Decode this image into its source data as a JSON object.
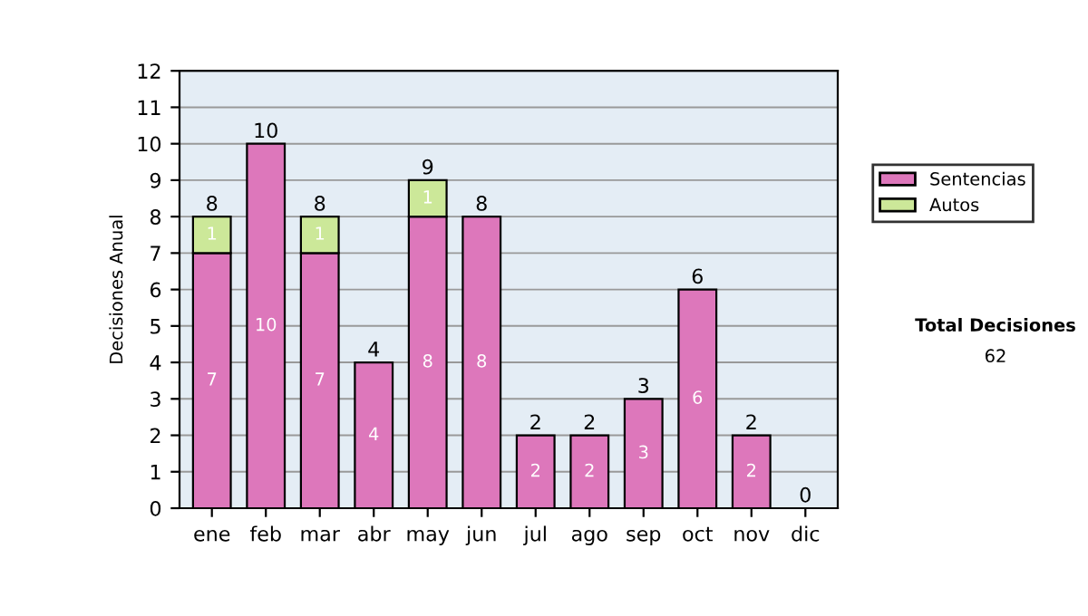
{
  "chart_data": {
    "type": "bar",
    "stacked": true,
    "ylabel": "Decisiones Anual",
    "categories": [
      "ene",
      "feb",
      "mar",
      "abr",
      "may",
      "jun",
      "jul",
      "ago",
      "sep",
      "oct",
      "nov",
      "dic"
    ],
    "series": [
      {
        "name": "Sentencias",
        "color": "#dd77bb",
        "values": [
          7,
          10,
          7,
          4,
          8,
          8,
          2,
          2,
          3,
          6,
          2,
          0
        ],
        "value_labels": [
          "7",
          "10",
          "7",
          "4",
          "8",
          "8",
          "2",
          "2",
          "3",
          "6",
          "2",
          null
        ]
      },
      {
        "name": "Autos",
        "color": "#cce899",
        "values": [
          1,
          0,
          1,
          0,
          1,
          0,
          0,
          0,
          0,
          0,
          0,
          0
        ],
        "value_labels": [
          "1",
          null,
          "1",
          null,
          "1",
          null,
          null,
          null,
          null,
          null,
          null,
          null
        ]
      }
    ],
    "totals": [
      "8",
      "10",
      "8",
      "4",
      "9",
      "8",
      "2",
      "2",
      "3",
      "6",
      "2",
      "0"
    ],
    "ylim": [
      0,
      12
    ],
    "yticks": [
      0,
      1,
      2,
      3,
      4,
      5,
      6,
      7,
      8,
      9,
      10,
      11,
      12
    ],
    "grid": "y",
    "legend": "right",
    "annotations": [
      "Total Decisiones",
      "62"
    ]
  }
}
